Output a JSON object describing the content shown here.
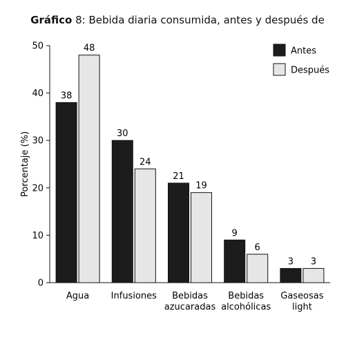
{
  "title_prefix": "Gráfico",
  "title_rest": " 8: Bebida diaria consumida, antes y después de",
  "chart_data": {
    "type": "bar",
    "title": "Gráfico 8: Bebida diaria consumida, antes y después de",
    "xlabel": "",
    "ylabel": "Porcentaje (%)",
    "ylim": [
      0,
      50
    ],
    "yticks": [
      0,
      10,
      20,
      30,
      40,
      50
    ],
    "grid": false,
    "legend_position": "top-right",
    "categories": [
      [
        "Agua"
      ],
      [
        "Infusiones"
      ],
      [
        "Bebidas",
        "azucaradas"
      ],
      [
        "Bebidas",
        "alcohólicas"
      ],
      [
        "Gaseosas",
        "light"
      ]
    ],
    "series": [
      {
        "name": "Antes",
        "color": "#1c1c1c",
        "values": [
          38,
          30,
          21,
          9,
          3
        ]
      },
      {
        "name": "Después",
        "color": "#e6e6e6",
        "values": [
          48,
          24,
          19,
          6,
          3
        ]
      }
    ]
  }
}
